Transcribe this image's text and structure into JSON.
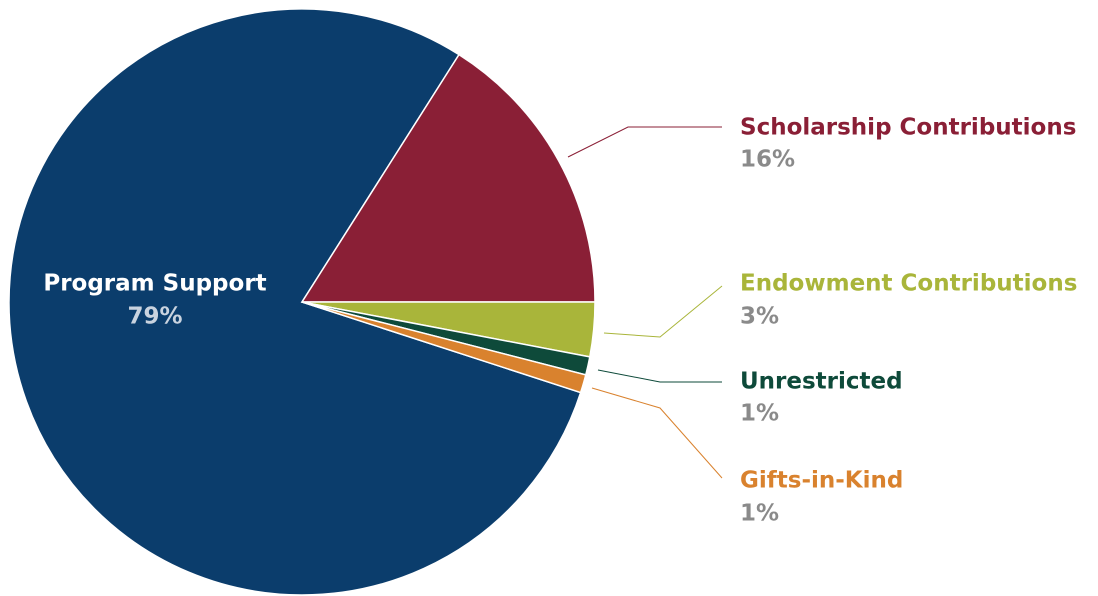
{
  "chart_data": {
    "type": "pie",
    "categories": [
      "Program Support",
      "Scholarship Contributions",
      "Endowment Contributions",
      "Unrestricted",
      "Gifts-in-Kind"
    ],
    "values": [
      79,
      16,
      3,
      1,
      1
    ],
    "value_labels": [
      "79%",
      "16%",
      "3%",
      "1%",
      "1%"
    ],
    "colors": [
      "#0b3d6c",
      "#8a1f36",
      "#a9b53a",
      "#0e4a3a",
      "#d9822e"
    ]
  }
}
